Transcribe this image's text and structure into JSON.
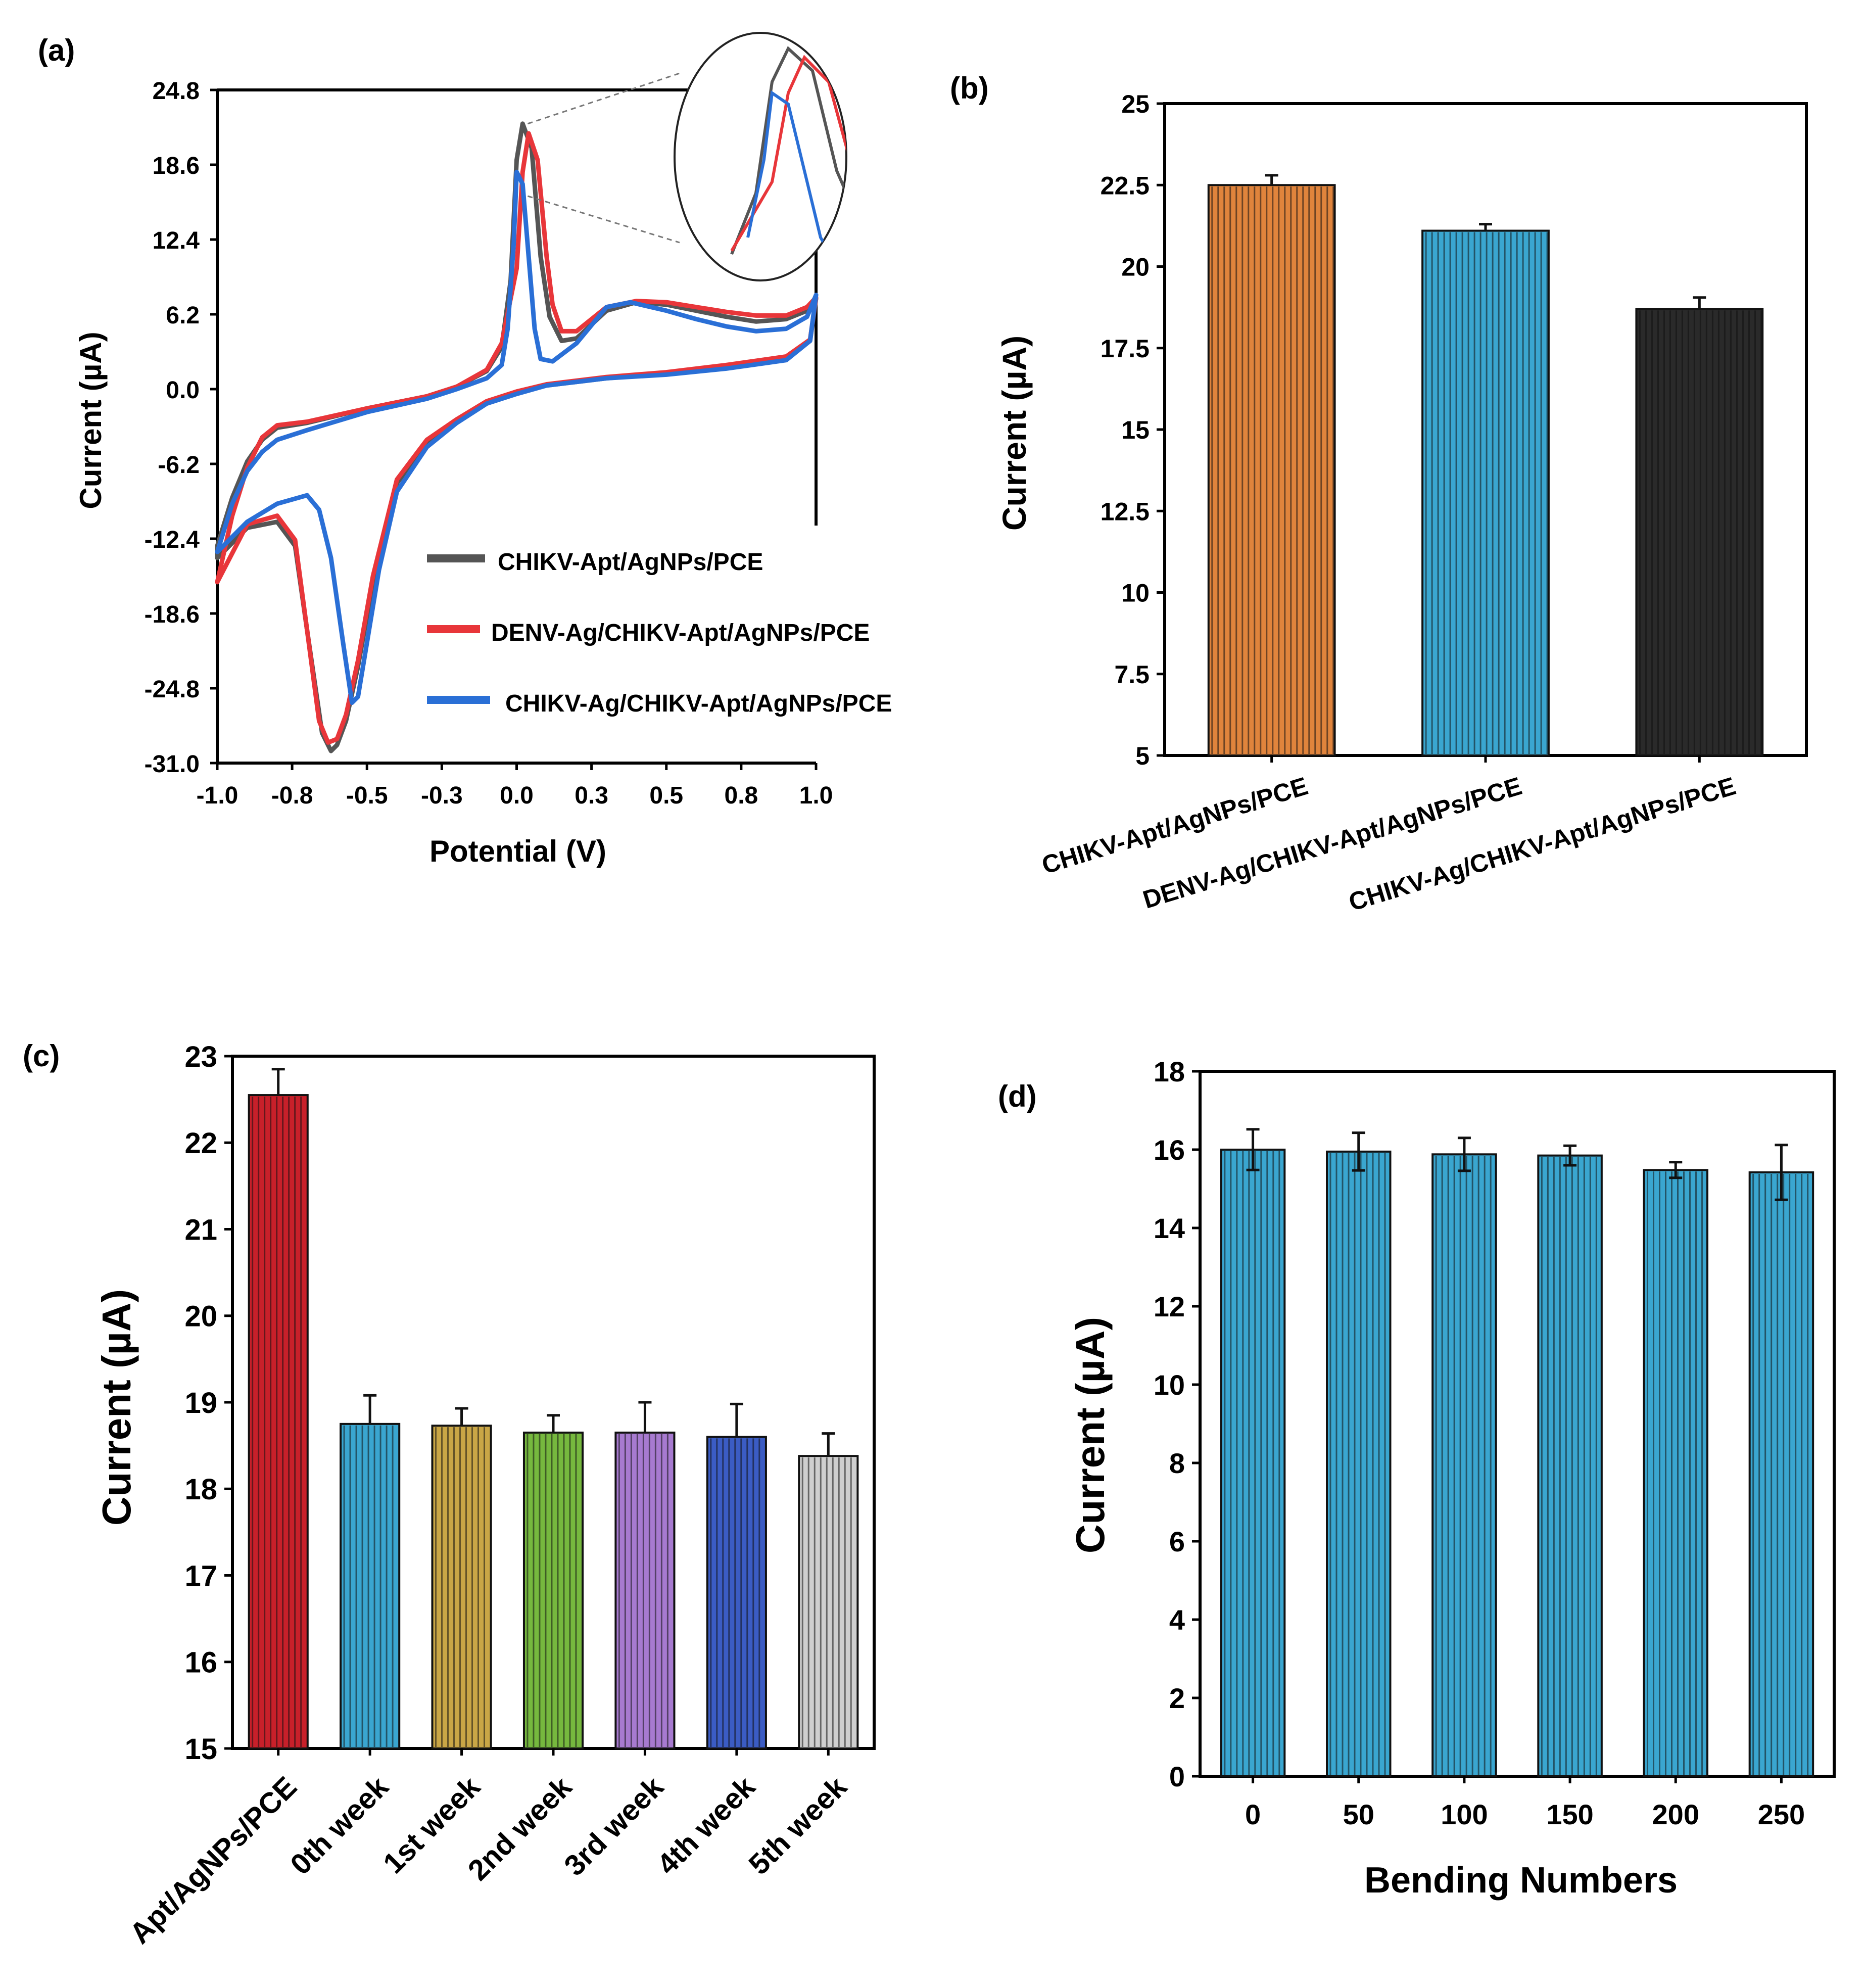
{
  "chart_data": [
    {
      "panel": "(a)",
      "type": "line",
      "xlabel": "Potential (V)",
      "ylabel": "Current (µA)",
      "xlim": [
        -1.0,
        1.0
      ],
      "ylim": [
        -31.0,
        24.8
      ],
      "x_ticks": [
        "-1.0",
        "-0.8",
        "-0.5",
        "-0.3",
        "0.0",
        "0.3",
        "0.5",
        "0.8",
        "1.0"
      ],
      "y_ticks": [
        "24.8",
        "18.6",
        "12.4",
        "6.2",
        "0.0",
        "-6.2",
        "-12.4",
        "-18.6",
        "-24.8",
        "-31.0"
      ],
      "legend_position": "lower-right",
      "inset": "magnified anodic peak (circle, top-right)",
      "series": [
        {
          "name": "CHIKV-Apt/AgNPs/PCE",
          "color": "#555555",
          "points": [
            [
              -1.0,
              -13.0
            ],
            [
              -0.95,
              -9.0
            ],
            [
              -0.9,
              -6.0
            ],
            [
              -0.85,
              -4.2
            ],
            [
              -0.8,
              -3.2
            ],
            [
              -0.7,
              -2.8
            ],
            [
              -0.5,
              -1.6
            ],
            [
              -0.3,
              -0.6
            ],
            [
              -0.2,
              0.2
            ],
            [
              -0.1,
              1.5
            ],
            [
              -0.05,
              3.5
            ],
            [
              -0.02,
              9.0
            ],
            [
              0.0,
              19.0
            ],
            [
              0.02,
              22.0
            ],
            [
              0.05,
              20.0
            ],
            [
              0.08,
              11.0
            ],
            [
              0.11,
              6.0
            ],
            [
              0.15,
              4.0
            ],
            [
              0.2,
              4.2
            ],
            [
              0.3,
              6.5
            ],
            [
              0.4,
              7.2
            ],
            [
              0.5,
              7.0
            ],
            [
              0.6,
              6.5
            ],
            [
              0.7,
              6.0
            ],
            [
              0.8,
              5.6
            ],
            [
              0.9,
              5.8
            ],
            [
              0.97,
              6.5
            ],
            [
              1.0,
              7.5
            ],
            [
              0.98,
              4.0
            ],
            [
              0.9,
              2.6
            ],
            [
              0.7,
              1.9
            ],
            [
              0.5,
              1.3
            ],
            [
              0.3,
              0.9
            ],
            [
              0.1,
              0.3
            ],
            [
              0.0,
              -0.3
            ],
            [
              -0.1,
              -1.1
            ],
            [
              -0.2,
              -2.6
            ],
            [
              -0.3,
              -4.4
            ],
            [
              -0.4,
              -7.8
            ],
            [
              -0.48,
              -16.0
            ],
            [
              -0.53,
              -23.0
            ],
            [
              -0.57,
              -27.5
            ],
            [
              -0.6,
              -29.5
            ],
            [
              -0.62,
              -30.0
            ],
            [
              -0.65,
              -28.5
            ],
            [
              -0.7,
              -20.0
            ],
            [
              -0.74,
              -13.0
            ],
            [
              -0.8,
              -11.0
            ],
            [
              -0.9,
              -11.5
            ],
            [
              -1.0,
              -14.0
            ]
          ]
        },
        {
          "name": "DENV-Ag/CHIKV-Apt/AgNPs/PCE",
          "color": "#e8363a",
          "points": [
            [
              -1.0,
              -16.0
            ],
            [
              -0.95,
              -10.5
            ],
            [
              -0.9,
              -6.5
            ],
            [
              -0.85,
              -4.0
            ],
            [
              -0.8,
              -3.0
            ],
            [
              -0.7,
              -2.7
            ],
            [
              -0.5,
              -1.6
            ],
            [
              -0.3,
              -0.6
            ],
            [
              -0.2,
              0.2
            ],
            [
              -0.1,
              1.6
            ],
            [
              -0.05,
              3.8
            ],
            [
              0.0,
              10.0
            ],
            [
              0.02,
              18.0
            ],
            [
              0.04,
              21.2
            ],
            [
              0.07,
              19.0
            ],
            [
              0.1,
              11.0
            ],
            [
              0.12,
              7.0
            ],
            [
              0.15,
              4.8
            ],
            [
              0.2,
              4.8
            ],
            [
              0.3,
              6.8
            ],
            [
              0.4,
              7.3
            ],
            [
              0.5,
              7.2
            ],
            [
              0.6,
              6.8
            ],
            [
              0.7,
              6.4
            ],
            [
              0.8,
              6.1
            ],
            [
              0.9,
              6.1
            ],
            [
              0.97,
              6.8
            ],
            [
              1.0,
              7.6
            ],
            [
              0.98,
              4.1
            ],
            [
              0.9,
              2.7
            ],
            [
              0.7,
              2.0
            ],
            [
              0.5,
              1.4
            ],
            [
              0.3,
              1.0
            ],
            [
              0.1,
              0.4
            ],
            [
              0.0,
              -0.2
            ],
            [
              -0.1,
              -1.0
            ],
            [
              -0.2,
              -2.5
            ],
            [
              -0.3,
              -4.2
            ],
            [
              -0.4,
              -7.5
            ],
            [
              -0.48,
              -15.5
            ],
            [
              -0.53,
              -22.5
            ],
            [
              -0.57,
              -27.0
            ],
            [
              -0.6,
              -29.0
            ],
            [
              -0.63,
              -29.3
            ],
            [
              -0.66,
              -27.5
            ],
            [
              -0.7,
              -20.0
            ],
            [
              -0.74,
              -12.5
            ],
            [
              -0.8,
              -10.5
            ],
            [
              -0.9,
              -11.2
            ],
            [
              -1.0,
              -16.0
            ]
          ]
        },
        {
          "name": "CHIKV-Ag/CHIKV-Apt/AgNPs/PCE",
          "color": "#2a6fd6",
          "points": [
            [
              -1.0,
              -13.5
            ],
            [
              -0.95,
              -9.5
            ],
            [
              -0.9,
              -6.8
            ],
            [
              -0.85,
              -5.2
            ],
            [
              -0.8,
              -4.2
            ],
            [
              -0.7,
              -3.4
            ],
            [
              -0.5,
              -1.9
            ],
            [
              -0.3,
              -0.8
            ],
            [
              -0.2,
              0.0
            ],
            [
              -0.1,
              0.9
            ],
            [
              -0.05,
              2.0
            ],
            [
              -0.03,
              5.0
            ],
            [
              -0.01,
              12.0
            ],
            [
              0.0,
              18.0
            ],
            [
              0.02,
              17.0
            ],
            [
              0.04,
              11.0
            ],
            [
              0.06,
              5.0
            ],
            [
              0.08,
              2.5
            ],
            [
              0.12,
              2.3
            ],
            [
              0.2,
              3.8
            ],
            [
              0.3,
              6.8
            ],
            [
              0.38,
              7.2
            ],
            [
              0.5,
              6.5
            ],
            [
              0.6,
              5.8
            ],
            [
              0.7,
              5.2
            ],
            [
              0.8,
              4.8
            ],
            [
              0.9,
              5.0
            ],
            [
              0.97,
              6.0
            ],
            [
              1.0,
              7.8
            ],
            [
              0.98,
              4.0
            ],
            [
              0.9,
              2.4
            ],
            [
              0.7,
              1.7
            ],
            [
              0.5,
              1.2
            ],
            [
              0.3,
              0.9
            ],
            [
              0.1,
              0.3
            ],
            [
              0.0,
              -0.4
            ],
            [
              -0.1,
              -1.2
            ],
            [
              -0.2,
              -2.8
            ],
            [
              -0.3,
              -4.8
            ],
            [
              -0.4,
              -8.5
            ],
            [
              -0.46,
              -15.0
            ],
            [
              -0.5,
              -21.0
            ],
            [
              -0.53,
              -25.5
            ],
            [
              -0.55,
              -26.0
            ],
            [
              -0.58,
              -21.0
            ],
            [
              -0.62,
              -14.0
            ],
            [
              -0.66,
              -10.0
            ],
            [
              -0.7,
              -8.8
            ],
            [
              -0.8,
              -9.5
            ],
            [
              -0.9,
              -11.0
            ],
            [
              -1.0,
              -13.5
            ]
          ]
        }
      ]
    },
    {
      "panel": "(b)",
      "type": "bar",
      "ylabel": "Current (µA)",
      "ylim": [
        5,
        25
      ],
      "y_ticks": [
        "25",
        "22.5",
        "20",
        "17.5",
        "15",
        "12.5",
        "10",
        "7.5",
        "5"
      ],
      "categories": [
        "CHIKV-Apt/AgNPs/PCE",
        "DENV-Ag/CHIKV-Apt/AgNPs/PCE",
        "CHIKV-Ag/CHIKV-Apt/AgNPs/PCE"
      ],
      "values": [
        22.5,
        21.1,
        18.7
      ],
      "errors": [
        0.3,
        0.2,
        0.35
      ],
      "colors": [
        "#e0843c",
        "#3aa6d0",
        "#2a2a2a"
      ]
    },
    {
      "panel": "(c)",
      "type": "bar",
      "ylabel": "Current (µA)",
      "ylim": [
        15,
        23
      ],
      "y_ticks": [
        "23",
        "22",
        "21",
        "20",
        "19",
        "18",
        "17",
        "16",
        "15"
      ],
      "categories": [
        "Apt/AgNPs/PCE",
        "0th week",
        "1st week",
        "2nd week",
        "3rd week",
        "4th week",
        "5th week"
      ],
      "values": [
        22.55,
        18.75,
        18.73,
        18.65,
        18.65,
        18.6,
        18.38
      ],
      "errors": [
        0.3,
        0.33,
        0.2,
        0.2,
        0.35,
        0.38,
        0.26
      ],
      "colors": [
        "#c8202a",
        "#3aa6d0",
        "#c9a646",
        "#76b83e",
        "#a77ad0",
        "#3b5cc4",
        "#cfcfcf"
      ]
    },
    {
      "panel": "(d)",
      "type": "bar",
      "xlabel": "Bending Numbers",
      "ylabel": "Current (µA)",
      "ylim": [
        0,
        18
      ],
      "y_ticks": [
        "18",
        "16",
        "14",
        "12",
        "10",
        "8",
        "6",
        "4",
        "2",
        "0"
      ],
      "categories": [
        "0",
        "50",
        "100",
        "150",
        "200",
        "250"
      ],
      "values": [
        16.0,
        15.95,
        15.88,
        15.85,
        15.48,
        15.42
      ],
      "errors": [
        0.52,
        0.48,
        0.42,
        0.25,
        0.2,
        0.7
      ],
      "colors": [
        "#3aa6d0"
      ]
    }
  ]
}
